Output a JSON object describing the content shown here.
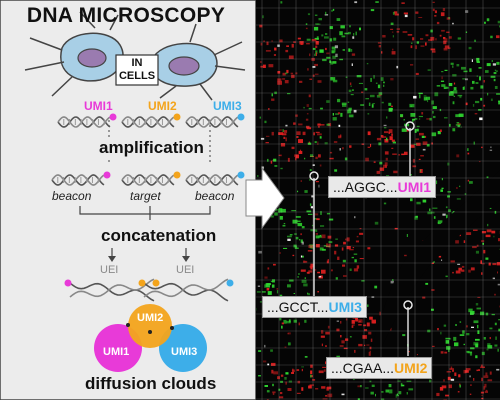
{
  "title": "DNA MICROSCOPY",
  "cells_label_line1": "IN",
  "cells_label_line2": "CELLS",
  "umis": [
    {
      "label": "UMI1",
      "color": "#e83ad8"
    },
    {
      "label": "UMI2",
      "color": "#f3a41c"
    },
    {
      "label": "UMI3",
      "color": "#3daee9"
    }
  ],
  "steps": {
    "amplification": "amplification",
    "concatenation": "concatenation",
    "diffusion": "diffusion clouds"
  },
  "strand_labels": [
    "beacon",
    "target",
    "beacon"
  ],
  "uei_label": "UEI",
  "callouts": [
    {
      "seq": "...AGGC...",
      "umi": "UMI1",
      "color": "#e83ad8"
    },
    {
      "seq": "...GCCT...",
      "umi": "UMI3",
      "color": "#3daee9"
    },
    {
      "seq": "...CGAA...",
      "umi": "UMI2",
      "color": "#f3a41c"
    }
  ],
  "colors": {
    "panel_bg": "#ececec",
    "image_bg": "#050505",
    "green": "#2fd62f",
    "red": "#e02020"
  }
}
